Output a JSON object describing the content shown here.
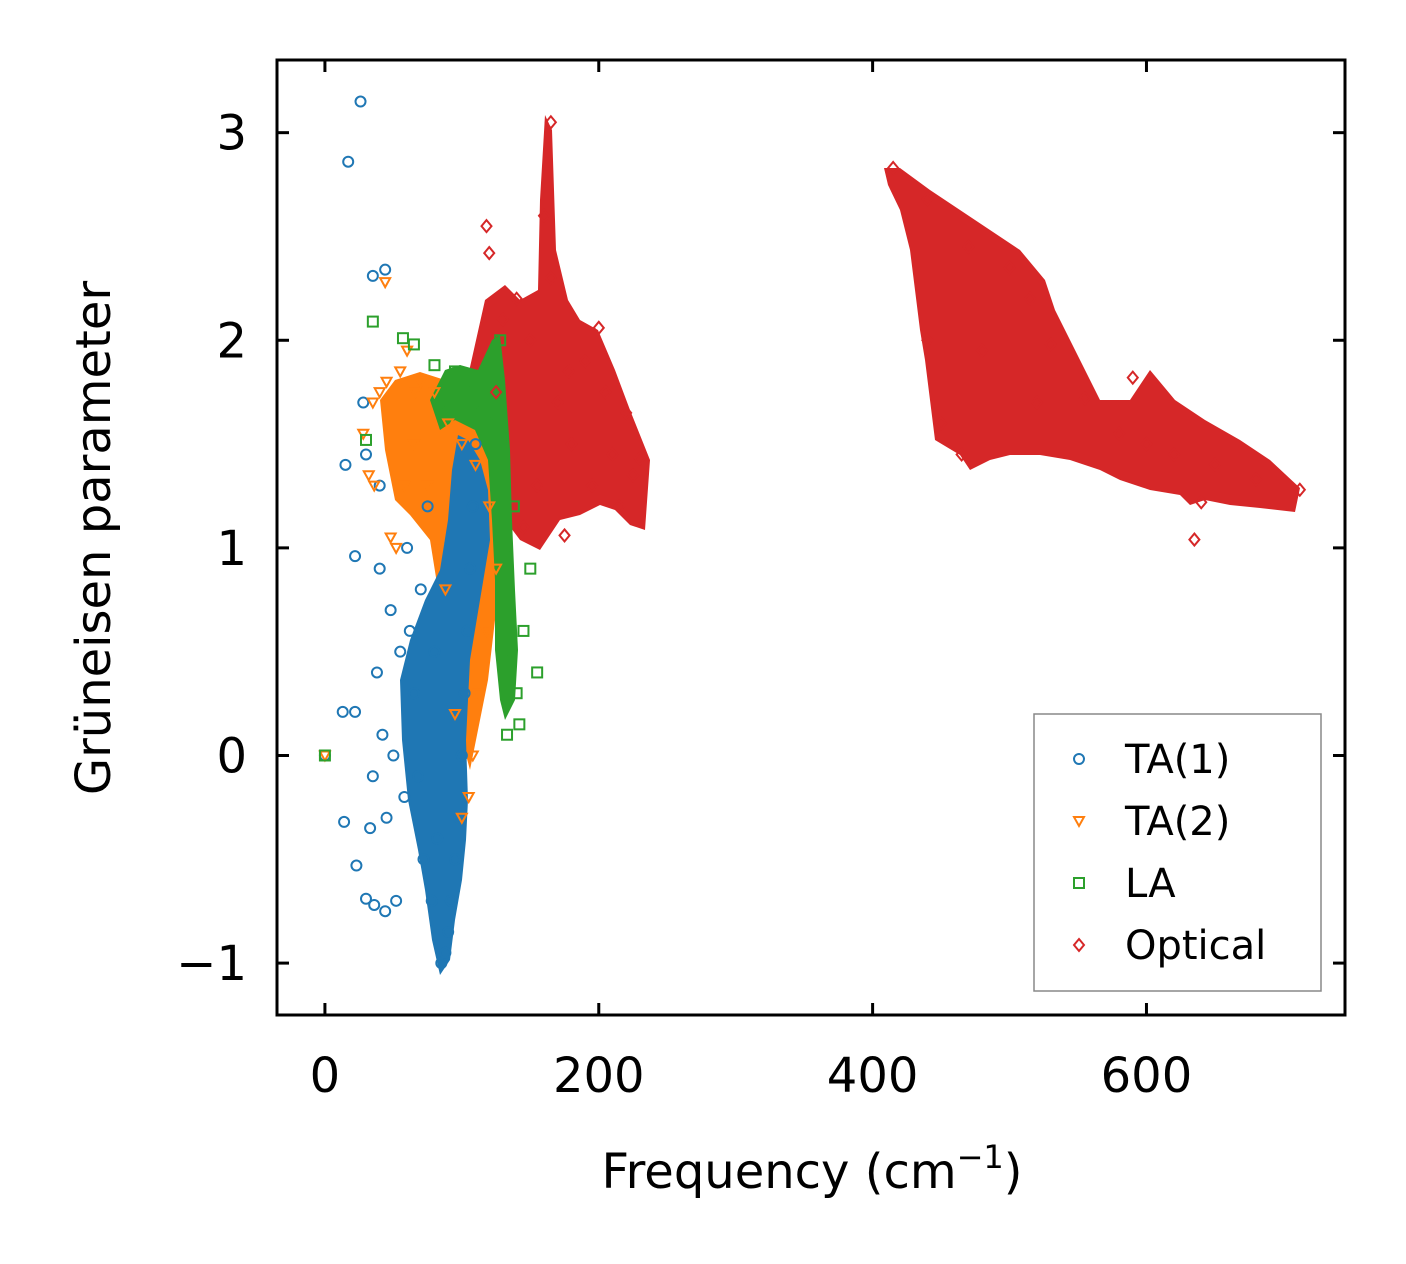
{
  "chart_data": {
    "type": "scatter",
    "title": "",
    "xlabel": "Frequency (cm",
    "xlabel_sup": "−1",
    "xlabel_suffix": ")",
    "ylabel": "Grüneisen parameter",
    "xlim": [
      -35,
      745
    ],
    "ylim": [
      -1.25,
      3.35
    ],
    "xticks": [
      0,
      200,
      400,
      600
    ],
    "xtick_labels": [
      "0",
      "200",
      "400",
      "600"
    ],
    "yticks": [
      -1,
      0,
      1,
      2,
      3
    ],
    "ytick_labels": [
      "−1",
      "0",
      "1",
      "2",
      "3"
    ],
    "grid": false,
    "legend_position": "lower-right",
    "series": [
      {
        "name": "TA(1)",
        "color": "#1f77b4",
        "marker": "circle",
        "points": [
          [
            26,
            3.15
          ],
          [
            17,
            2.86
          ],
          [
            35,
            2.31
          ],
          [
            44,
            2.34
          ],
          [
            0,
            0
          ],
          [
            15,
            1.4
          ],
          [
            22,
            0.96
          ],
          [
            13,
            0.21
          ],
          [
            22,
            0.21
          ],
          [
            14,
            -0.32
          ],
          [
            23,
            -0.53
          ],
          [
            30,
            -0.69
          ],
          [
            36,
            -0.72
          ],
          [
            44,
            -0.75
          ],
          [
            52,
            -0.7
          ],
          [
            33,
            -0.35
          ],
          [
            35,
            -0.1
          ],
          [
            28,
            1.7
          ],
          [
            30,
            1.45
          ],
          [
            40,
            1.3
          ],
          [
            85,
            -1.0
          ],
          [
            88,
            -0.95
          ],
          [
            90,
            -0.85
          ],
          [
            92,
            -0.7
          ],
          [
            95,
            -0.5
          ],
          [
            98,
            -0.3
          ],
          [
            100,
            0.0
          ],
          [
            102,
            0.3
          ],
          [
            104,
            0.6
          ],
          [
            106,
            0.9
          ],
          [
            108,
            1.2
          ],
          [
            110,
            1.5
          ],
          [
            60,
            1.0
          ],
          [
            55,
            0.5
          ],
          [
            50,
            0.0
          ],
          [
            45,
            -0.3
          ],
          [
            58,
            -0.2
          ],
          [
            65,
            0.3
          ],
          [
            70,
            0.8
          ],
          [
            75,
            1.2
          ],
          [
            80,
            0.5
          ],
          [
            82,
            -0.4
          ],
          [
            78,
            -0.7
          ],
          [
            68,
            -0.1
          ],
          [
            62,
            0.6
          ],
          [
            48,
            0.7
          ],
          [
            40,
            0.9
          ],
          [
            38,
            0.4
          ],
          [
            42,
            0.1
          ],
          [
            72,
            -0.5
          ]
        ]
      },
      {
        "name": "TA(2)",
        "color": "#ff7f0e",
        "marker": "triangle-down",
        "points": [
          [
            0,
            0
          ],
          [
            44,
            2.28
          ],
          [
            60,
            1.95
          ],
          [
            66,
            1.75
          ],
          [
            35,
            1.7
          ],
          [
            40,
            1.75
          ],
          [
            32,
            1.35
          ],
          [
            36,
            1.3
          ],
          [
            28,
            1.55
          ],
          [
            48,
            1.05
          ],
          [
            45,
            1.8
          ],
          [
            55,
            1.85
          ],
          [
            70,
            1.8
          ],
          [
            80,
            1.75
          ],
          [
            90,
            1.6
          ],
          [
            100,
            1.5
          ],
          [
            110,
            1.4
          ],
          [
            120,
            1.2
          ],
          [
            125,
            0.9
          ],
          [
            118,
            0.6
          ],
          [
            112,
            0.3
          ],
          [
            108,
            0.0
          ],
          [
            105,
            -0.2
          ],
          [
            100,
            -0.3
          ],
          [
            95,
            0.2
          ],
          [
            88,
            0.8
          ],
          [
            82,
            1.0
          ],
          [
            75,
            1.3
          ],
          [
            65,
            1.5
          ],
          [
            58,
            1.3
          ],
          [
            52,
            1.0
          ]
        ]
      },
      {
        "name": "LA",
        "color": "#2ca02c",
        "marker": "square",
        "points": [
          [
            0,
            0
          ],
          [
            35,
            2.09
          ],
          [
            57,
            2.01
          ],
          [
            65,
            1.98
          ],
          [
            80,
            1.88
          ],
          [
            30,
            1.52
          ],
          [
            95,
            1.85
          ],
          [
            110,
            1.8
          ],
          [
            120,
            1.85
          ],
          [
            128,
            2.0
          ],
          [
            130,
            1.5
          ],
          [
            132,
            1.0
          ],
          [
            134,
            0.7
          ],
          [
            136,
            0.5
          ],
          [
            140,
            0.3
          ],
          [
            142,
            0.15
          ],
          [
            133,
            0.1
          ],
          [
            155,
            0.4
          ],
          [
            145,
            0.6
          ],
          [
            150,
            0.9
          ],
          [
            138,
            1.2
          ],
          [
            125,
            1.6
          ],
          [
            115,
            1.7
          ],
          [
            105,
            1.75
          ],
          [
            90,
            1.7
          ]
        ]
      },
      {
        "name": "Optical",
        "color": "#d62728",
        "marker": "diamond",
        "points": [
          [
            118,
            2.55
          ],
          [
            120,
            2.42
          ],
          [
            165,
            3.05
          ],
          [
            160,
            2.6
          ],
          [
            175,
            1.06
          ],
          [
            635,
            1.04
          ],
          [
            415,
            2.83
          ],
          [
            440,
            2.68
          ],
          [
            470,
            2.45
          ],
          [
            500,
            2.35
          ],
          [
            515,
            2.2
          ],
          [
            530,
            1.98
          ],
          [
            555,
            1.72
          ],
          [
            580,
            1.55
          ],
          [
            600,
            1.5
          ],
          [
            620,
            1.45
          ],
          [
            650,
            1.4
          ],
          [
            680,
            1.33
          ],
          [
            712,
            1.28
          ],
          [
            465,
            1.45
          ],
          [
            450,
            1.6
          ],
          [
            440,
            2.0
          ],
          [
            480,
            1.95
          ],
          [
            520,
            1.7
          ],
          [
            640,
            1.22
          ],
          [
            590,
            1.82
          ],
          [
            200,
            2.06
          ],
          [
            230,
            1.43
          ],
          [
            220,
            1.65
          ],
          [
            210,
            1.45
          ],
          [
            195,
            1.3
          ],
          [
            180,
            1.5
          ],
          [
            170,
            1.7
          ],
          [
            150,
            2.0
          ],
          [
            140,
            2.2
          ],
          [
            130,
            2.1
          ],
          [
            125,
            1.75
          ],
          [
            155,
            1.3
          ],
          [
            145,
            1.1
          ],
          [
            165,
            2.3
          ],
          [
            178,
            1.85
          ],
          [
            190,
            1.9
          ],
          [
            205,
            1.75
          ],
          [
            215,
            1.2
          ],
          [
            225,
            1.35
          ]
        ]
      }
    ]
  }
}
